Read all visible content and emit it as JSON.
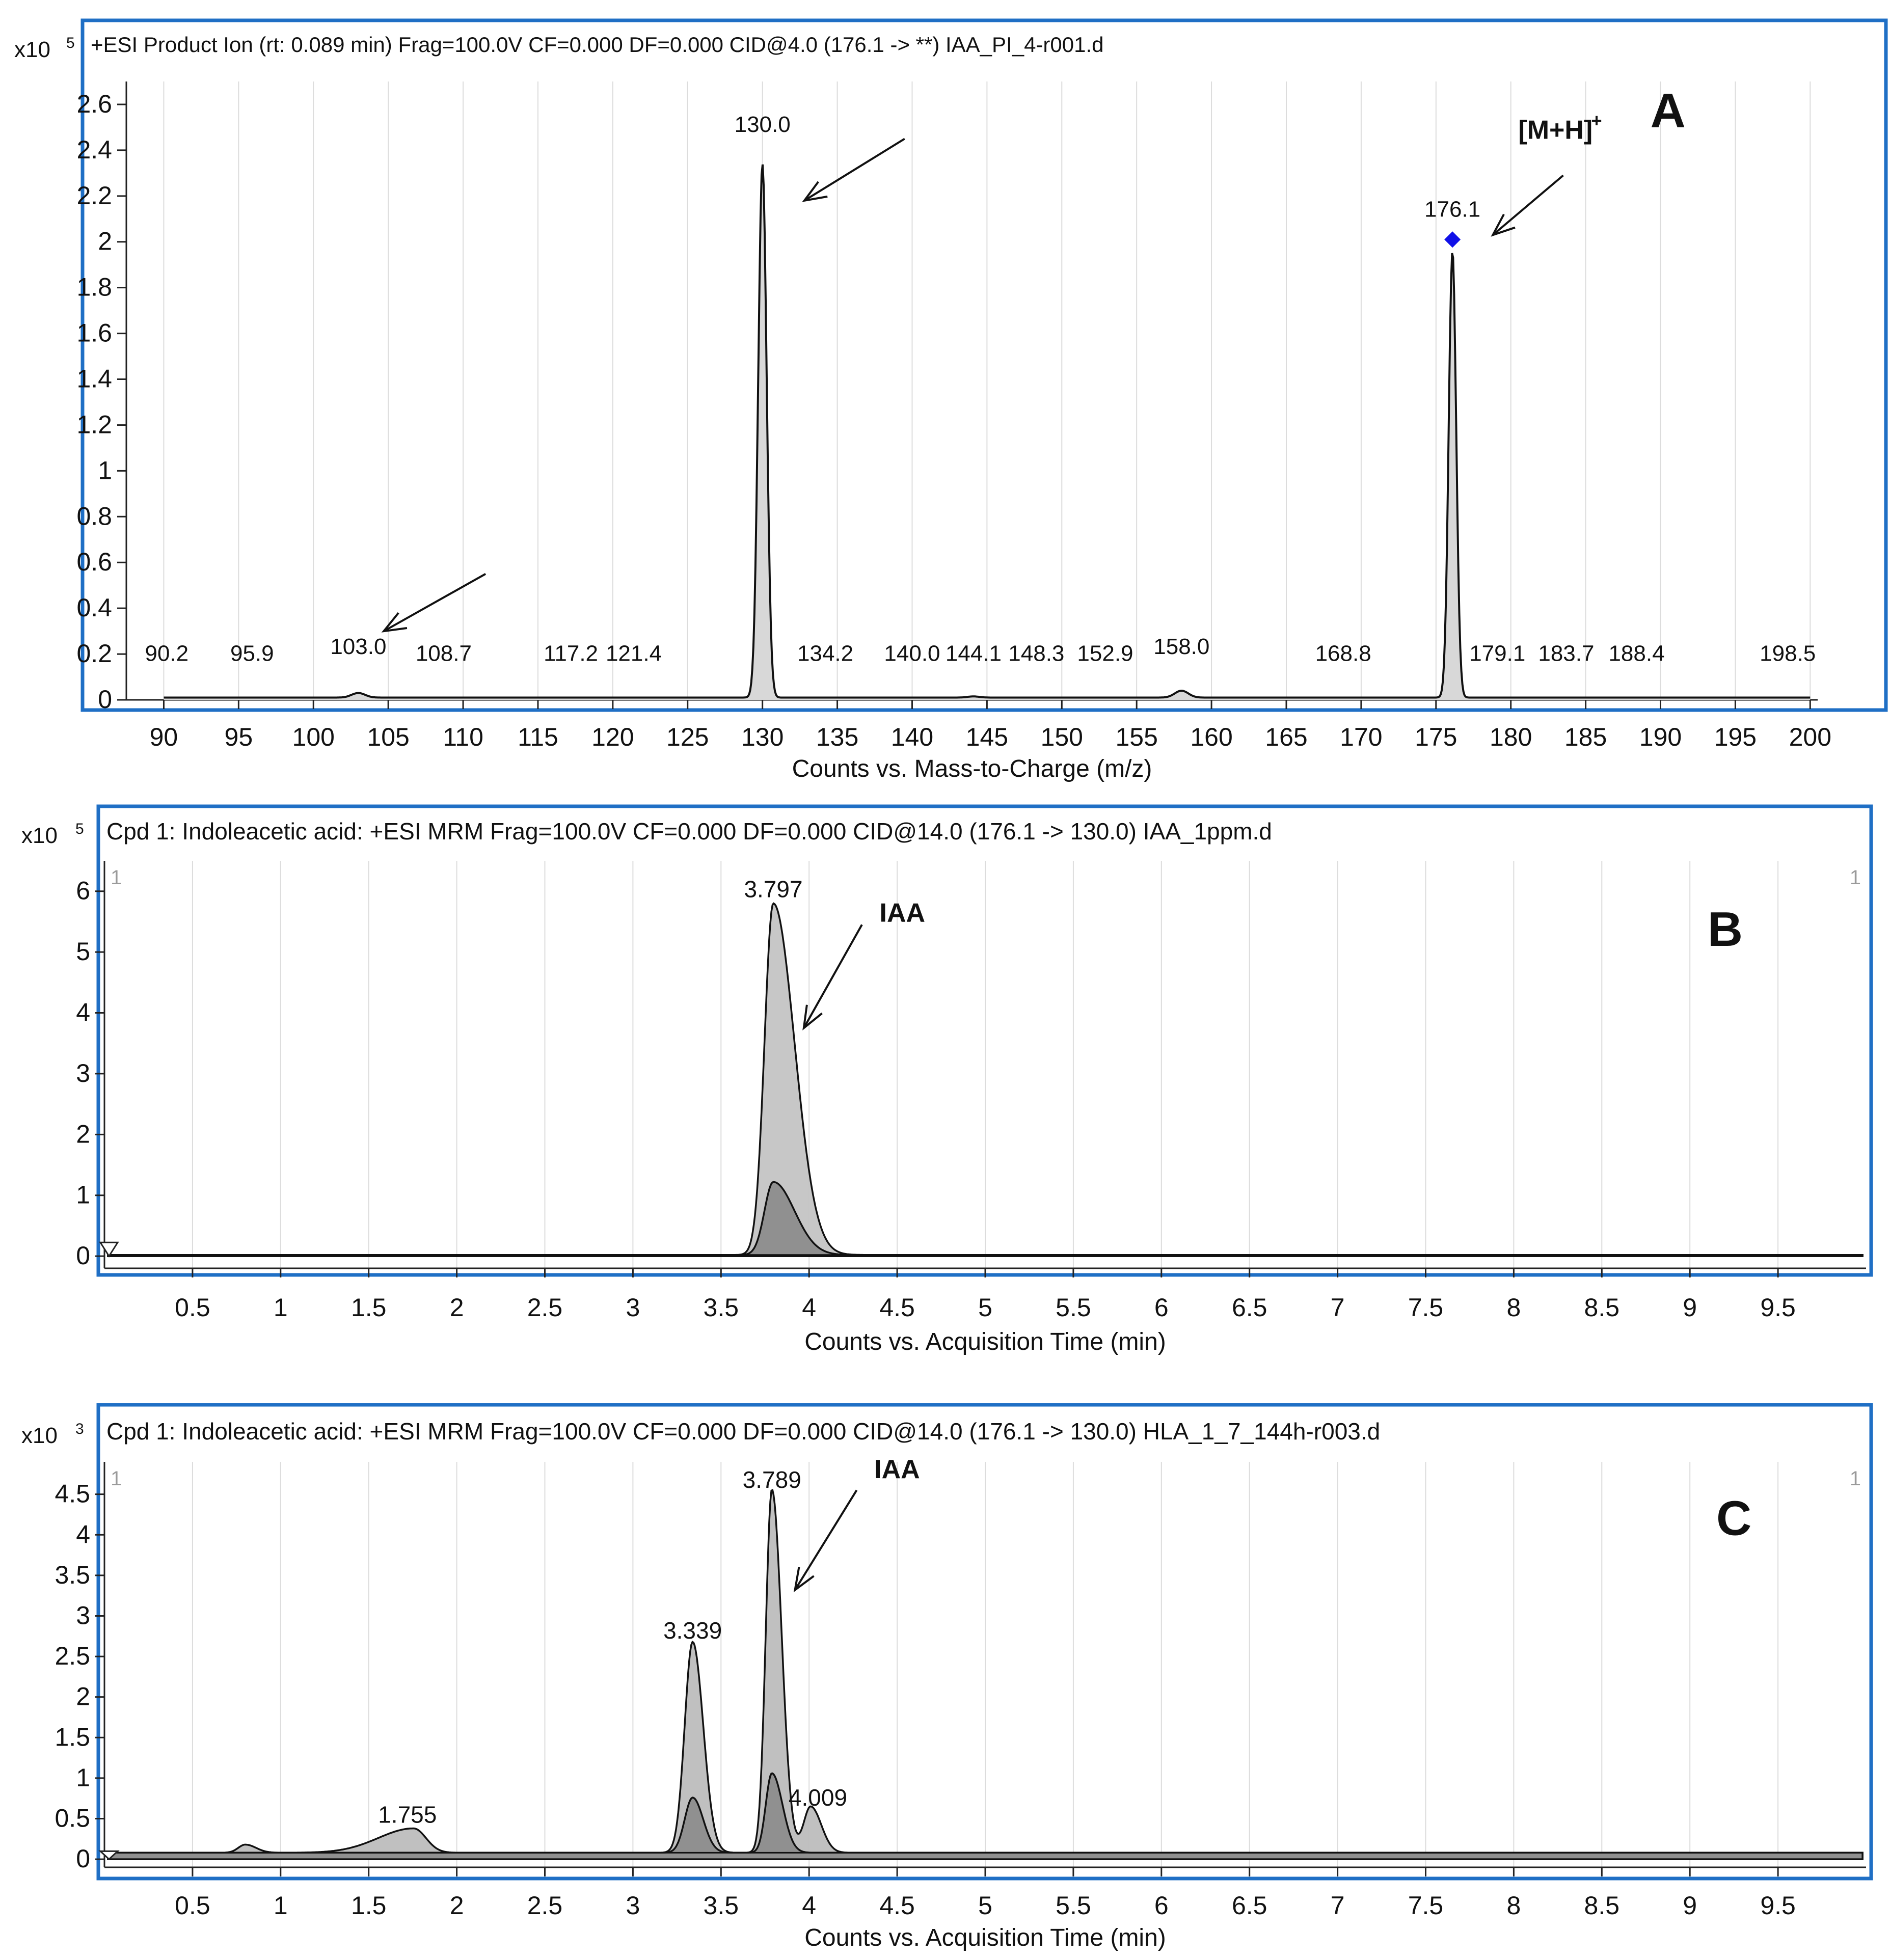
{
  "chart_data": [
    {
      "type": "line",
      "panel": "A",
      "multiplier": "x10",
      "exponent": "5",
      "title": "+ESI Product Ion (rt: 0.089 min) Frag=100.0V CF=0.000 DF=0.000 CID@4.0 (176.1 -> **) IAA_PI_4-r001.d",
      "xlabel": "Counts vs. Mass-to-Charge (m/z)",
      "xlim": [
        87.5,
        200.5
      ],
      "ylim": [
        0,
        2.7
      ],
      "x_ticks": [
        "90",
        "95",
        "100",
        "105",
        "110",
        "115",
        "120",
        "125",
        "130",
        "135",
        "140",
        "145",
        "150",
        "155",
        "160",
        "165",
        "170",
        "175",
        "180",
        "185",
        "190",
        "195",
        "200"
      ],
      "y_ticks": [
        "0",
        "0.2",
        "0.4",
        "0.6",
        "0.8",
        "1",
        "1.2",
        "1.4",
        "1.6",
        "1.8",
        "2",
        "2.2",
        "2.4",
        "2.6"
      ],
      "baseline": 0.01,
      "peaks": [
        {
          "x": 103.0,
          "y": 0.02,
          "w": 0.45
        },
        {
          "x": 130.0,
          "y": 2.33,
          "w": 0.28
        },
        {
          "x": 144.1,
          "y": 0.005,
          "w": 0.4
        },
        {
          "x": 158.0,
          "y": 0.03,
          "w": 0.45
        },
        {
          "x": 176.1,
          "y": 1.95,
          "w": 0.25
        }
      ],
      "peak_labels": [
        {
          "text": "90.2",
          "x": 90.2,
          "y": 0.17
        },
        {
          "text": "95.9",
          "x": 95.9,
          "y": 0.17
        },
        {
          "text": "103.0",
          "x": 103.0,
          "y": 0.2
        },
        {
          "text": "108.7",
          "x": 108.7,
          "y": 0.17
        },
        {
          "text": "117.2",
          "x": 117.2,
          "y": 0.17
        },
        {
          "text": "121.4",
          "x": 121.4,
          "y": 0.17
        },
        {
          "text": "130.0",
          "x": 130.0,
          "y": 2.48
        },
        {
          "text": "134.2",
          "x": 134.2,
          "y": 0.17
        },
        {
          "text": "140.0",
          "x": 140.0,
          "y": 0.17
        },
        {
          "text": "144.1",
          "x": 144.1,
          "y": 0.17
        },
        {
          "text": "148.3",
          "x": 148.3,
          "y": 0.17
        },
        {
          "text": "152.9",
          "x": 152.9,
          "y": 0.17
        },
        {
          "text": "158.0",
          "x": 158.0,
          "y": 0.2
        },
        {
          "text": "168.8",
          "x": 168.8,
          "y": 0.17
        },
        {
          "text": "176.1",
          "x": 176.1,
          "y": 2.11
        },
        {
          "text": "179.1",
          "x": 179.1,
          "y": 0.17
        },
        {
          "text": "183.7",
          "x": 183.7,
          "y": 0.17
        },
        {
          "text": "188.4",
          "x": 188.4,
          "y": 0.17
        },
        {
          "text": "198.5",
          "x": 198.5,
          "y": 0.17
        }
      ],
      "markers": [
        {
          "x": 176.1,
          "y": 2.01,
          "color": "#1010e8"
        }
      ],
      "arrows": [
        {
          "x1": 139.5,
          "y1": 2.45,
          "x2": 132.8,
          "y2": 2.18
        },
        {
          "x1": 183.5,
          "y1": 2.29,
          "x2": 178.8,
          "y2": 2.03
        },
        {
          "x1": 111.5,
          "y1": 0.55,
          "x2": 104.7,
          "y2": 0.3
        }
      ],
      "annotations": [
        {
          "text": "A",
          "x": 190.5,
          "y": 2.5,
          "style": "panel"
        },
        {
          "text": "[M+H]",
          "sup": "+",
          "x": 180.5,
          "y": 2.45,
          "style": "bold"
        }
      ]
    },
    {
      "type": "area",
      "panel": "B",
      "multiplier": "x10",
      "exponent": "5",
      "title": "Cpd 1: Indoleacetic acid: +ESI MRM Frag=100.0V CF=0.000 DF=0.000 CID@14.0 (176.1 -> 130.0) IAA_1ppm.d",
      "xlabel": "Counts vs. Acquisition Time (min)",
      "xlim": [
        0,
        10
      ],
      "ylim": [
        -0.2,
        6.5
      ],
      "x_ticks": [
        "0.5",
        "1",
        "1.5",
        "2",
        "2.5",
        "3",
        "3.5",
        "4",
        "4.5",
        "5",
        "5.5",
        "6",
        "6.5",
        "7",
        "7.5",
        "8",
        "8.5",
        "9",
        "9.5"
      ],
      "y_ticks": [
        "0",
        "1",
        "2",
        "3",
        "4",
        "5",
        "6"
      ],
      "corner_labels": [
        "1",
        "1"
      ],
      "baseline": 0.02,
      "series": [
        {
          "name": "",
          "peaks": [
            {
              "x": 3.797,
              "y": 5.78,
              "ws": 0.05,
              "wt": 0.12
            }
          ],
          "fill": "#c4c4c4"
        },
        {
          "name": "",
          "peaks": [
            {
              "x": 3.797,
              "y": 1.2,
              "ws": 0.05,
              "wt": 0.12
            }
          ],
          "fill": "#8d8d8d"
        }
      ],
      "peak_labels": [
        {
          "text": "3.797",
          "x": 3.797,
          "y": 5.9
        }
      ],
      "arrows": [
        {
          "x1": 4.3,
          "y1": 5.45,
          "x2": 3.97,
          "y2": 3.75
        }
      ],
      "annotations": [
        {
          "text": "B",
          "x": 9.2,
          "y": 5.1,
          "style": "panel"
        },
        {
          "text": "IAA",
          "x": 4.4,
          "y": 5.5,
          "style": "bold"
        }
      ]
    },
    {
      "type": "area",
      "panel": "C",
      "multiplier": "x10",
      "exponent": "3",
      "title": "Cpd 1: Indoleacetic acid: +ESI MRM Frag=100.0V CF=0.000 DF=0.000 CID@14.0 (176.1 -> 130.0) HLA_1_7_144h-r003.d",
      "xlabel": "Counts vs. Acquisition Time (min)",
      "xlim": [
        0,
        10
      ],
      "ylim": [
        -0.1,
        4.9
      ],
      "x_ticks": [
        "0.5",
        "1",
        "1.5",
        "2",
        "2.5",
        "3",
        "3.5",
        "4",
        "4.5",
        "5",
        "5.5",
        "6",
        "6.5",
        "7",
        "7.5",
        "8",
        "8.5",
        "9",
        "9.5"
      ],
      "y_ticks": [
        "0",
        "0.5",
        "1",
        "1.5",
        "2",
        "2.5",
        "3",
        "3.5",
        "4",
        "4.5"
      ],
      "corner_labels": [
        "1",
        "1"
      ],
      "baseline": 0.08,
      "series": [
        {
          "name": "",
          "peaks": [
            {
              "x": 0.8,
              "y": 0.1,
              "ws": 0.04,
              "wt": 0.06
            },
            {
              "x": 1.755,
              "y": 0.3,
              "ws": 0.2,
              "wt": 0.07
            },
            {
              "x": 3.339,
              "y": 2.6,
              "ws": 0.045,
              "wt": 0.06
            },
            {
              "x": 3.789,
              "y": 4.48,
              "ws": 0.035,
              "wt": 0.055
            },
            {
              "x": 4.009,
              "y": 0.57,
              "ws": 0.04,
              "wt": 0.06
            }
          ],
          "fill": "#bdbdbd"
        },
        {
          "name": "",
          "peaks": [
            {
              "x": 3.339,
              "y": 0.68,
              "ws": 0.045,
              "wt": 0.06
            },
            {
              "x": 3.789,
              "y": 0.98,
              "ws": 0.035,
              "wt": 0.06
            }
          ],
          "fill": "#8d8d8d"
        }
      ],
      "peak_labels": [
        {
          "text": "1.755",
          "x": 1.72,
          "y": 0.45
        },
        {
          "text": "3.339",
          "x": 3.339,
          "y": 2.72
        },
        {
          "text": "3.789",
          "x": 3.789,
          "y": 4.58
        },
        {
          "text": "4.009",
          "x": 4.05,
          "y": 0.66
        }
      ],
      "arrows": [
        {
          "x1": 4.27,
          "y1": 4.55,
          "x2": 3.92,
          "y2": 3.32
        }
      ],
      "annotations": [
        {
          "text": "C",
          "x": 9.25,
          "y": 4.0,
          "style": "panel"
        },
        {
          "text": "IAA",
          "x": 4.37,
          "y": 4.7,
          "style": "bold"
        }
      ]
    }
  ]
}
